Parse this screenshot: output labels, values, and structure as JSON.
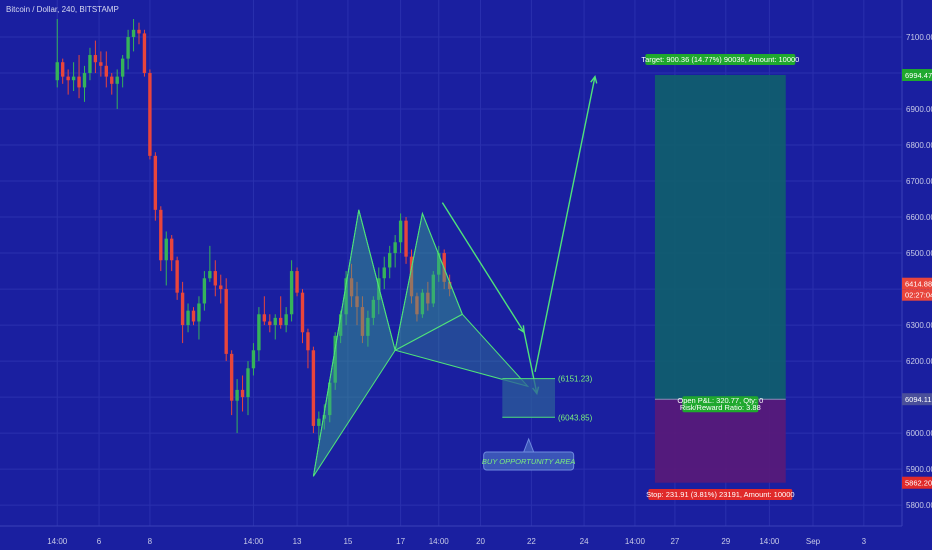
{
  "header": {
    "title": "Bitcoin / Dollar, 240, BITSTAMP"
  },
  "colors": {
    "background": "#1a1fa0",
    "grid": "#2a30ae",
    "up": "#35b35a",
    "down": "#e8453c",
    "pattern_fill": "#3aa88a",
    "pattern_line": "#4fe27a",
    "target_zone": "#0f5f6b",
    "stop_zone": "#5a1a78",
    "axis_text": "#c9cbe8"
  },
  "chart_data": {
    "type": "candlestick",
    "title": "Bitcoin / Dollar, 240, BITSTAMP",
    "y_ticks": [
      5800,
      5900,
      6000,
      6100,
      6200,
      6300,
      6400,
      6500,
      6600,
      6700,
      6800,
      6900,
      7000,
      7100
    ],
    "ylim": [
      5742,
      7175
    ],
    "x_ticks": [
      {
        "label": "14:00",
        "x": 0
      },
      {
        "label": "6",
        "x": 2.3
      },
      {
        "label": "8",
        "x": 5.1
      },
      {
        "label": "14:00",
        "x": 10.8
      },
      {
        "label": "13",
        "x": 13.2
      },
      {
        "label": "15",
        "x": 16.0
      },
      {
        "label": "17",
        "x": 18.9
      },
      {
        "label": "14:00",
        "x": 21.0
      },
      {
        "label": "20",
        "x": 23.3
      },
      {
        "label": "22",
        "x": 26.1
      },
      {
        "label": "24",
        "x": 29.0
      },
      {
        "label": "14:00",
        "x": 31.8
      },
      {
        "label": "27",
        "x": 34.0
      },
      {
        "label": "29",
        "x": 36.8
      },
      {
        "label": "14:00",
        "x": 39.2
      },
      {
        "label": "Sep",
        "x": 41.6
      },
      {
        "label": "3",
        "x": 44.4
      }
    ],
    "xlim": [
      -1.5,
      46.5
    ],
    "candles": [
      [
        0,
        6980,
        7150,
        6960,
        7030
      ],
      [
        0.3,
        7030,
        7040,
        6970,
        6990
      ],
      [
        0.6,
        6990,
        7010,
        6940,
        6980
      ],
      [
        0.9,
        6980,
        7030,
        6950,
        6990
      ],
      [
        1.2,
        6990,
        7050,
        6930,
        6960
      ],
      [
        1.5,
        6960,
        7020,
        6920,
        7000
      ],
      [
        1.8,
        7000,
        7070,
        6980,
        7050
      ],
      [
        2.1,
        7050,
        7090,
        7000,
        7030
      ],
      [
        2.4,
        7030,
        7060,
        6990,
        7020
      ],
      [
        2.7,
        7020,
        7060,
        6960,
        6990
      ],
      [
        3.0,
        6990,
        7000,
        6940,
        6970
      ],
      [
        3.3,
        6970,
        7010,
        6900,
        6990
      ],
      [
        3.6,
        6990,
        7050,
        6960,
        7040
      ],
      [
        3.9,
        7040,
        7120,
        7010,
        7100
      ],
      [
        4.2,
        7100,
        7150,
        7060,
        7120
      ],
      [
        4.5,
        7120,
        7140,
        7080,
        7110
      ],
      [
        4.8,
        7110,
        7120,
        6990,
        7000
      ],
      [
        5.1,
        7000,
        7010,
        6760,
        6770
      ],
      [
        5.4,
        6770,
        6780,
        6590,
        6620
      ],
      [
        5.7,
        6620,
        6630,
        6450,
        6480
      ],
      [
        6.0,
        6480,
        6560,
        6410,
        6540
      ],
      [
        6.3,
        6540,
        6550,
        6450,
        6480
      ],
      [
        6.6,
        6480,
        6490,
        6370,
        6390
      ],
      [
        6.9,
        6390,
        6420,
        6250,
        6300
      ],
      [
        7.2,
        6300,
        6360,
        6280,
        6340
      ],
      [
        7.5,
        6340,
        6350,
        6300,
        6310
      ],
      [
        7.8,
        6310,
        6380,
        6260,
        6360
      ],
      [
        8.1,
        6360,
        6450,
        6340,
        6430
      ],
      [
        8.4,
        6430,
        6520,
        6420,
        6450
      ],
      [
        8.7,
        6450,
        6480,
        6380,
        6410
      ],
      [
        9.0,
        6410,
        6440,
        6360,
        6400
      ],
      [
        9.3,
        6400,
        6430,
        6200,
        6220
      ],
      [
        9.6,
        6220,
        6230,
        6050,
        6090
      ],
      [
        9.9,
        6090,
        6150,
        6000,
        6120
      ],
      [
        10.2,
        6120,
        6160,
        6060,
        6100
      ],
      [
        10.5,
        6100,
        6200,
        6050,
        6180
      ],
      [
        10.8,
        6180,
        6250,
        6160,
        6230
      ],
      [
        11.1,
        6230,
        6350,
        6200,
        6330
      ],
      [
        11.4,
        6330,
        6380,
        6300,
        6310
      ],
      [
        11.7,
        6310,
        6330,
        6280,
        6300
      ],
      [
        12.0,
        6300,
        6330,
        6260,
        6320
      ],
      [
        12.3,
        6320,
        6380,
        6290,
        6300
      ],
      [
        12.6,
        6300,
        6350,
        6280,
        6330
      ],
      [
        12.9,
        6330,
        6480,
        6310,
        6450
      ],
      [
        13.2,
        6450,
        6460,
        6380,
        6390
      ],
      [
        13.5,
        6390,
        6400,
        6250,
        6280
      ],
      [
        13.8,
        6280,
        6290,
        6180,
        6230
      ],
      [
        14.1,
        6230,
        6240,
        6000,
        6020
      ],
      [
        14.4,
        6020,
        6060,
        5980,
        6040
      ],
      [
        14.7,
        6040,
        6080,
        6010,
        6050
      ],
      [
        15.0,
        6050,
        6150,
        6030,
        6140
      ],
      [
        15.3,
        6140,
        6280,
        6120,
        6270
      ],
      [
        15.6,
        6270,
        6340,
        6250,
        6330
      ],
      [
        15.9,
        6330,
        6450,
        6300,
        6430
      ],
      [
        16.2,
        6430,
        6470,
        6350,
        6380
      ],
      [
        16.5,
        6380,
        6420,
        6300,
        6350
      ],
      [
        16.8,
        6350,
        6380,
        6250,
        6270
      ],
      [
        17.1,
        6270,
        6340,
        6240,
        6320
      ],
      [
        17.4,
        6320,
        6380,
        6300,
        6370
      ],
      [
        17.7,
        6370,
        6460,
        6330,
        6430
      ],
      [
        18.0,
        6430,
        6490,
        6400,
        6460
      ],
      [
        18.3,
        6460,
        6520,
        6430,
        6500
      ],
      [
        18.6,
        6500,
        6550,
        6460,
        6530
      ],
      [
        18.9,
        6530,
        6610,
        6500,
        6590
      ],
      [
        19.2,
        6590,
        6600,
        6470,
        6490
      ],
      [
        19.5,
        6490,
        6510,
        6360,
        6380
      ],
      [
        19.8,
        6380,
        6390,
        6310,
        6330
      ],
      [
        20.1,
        6330,
        6400,
        6320,
        6390
      ],
      [
        20.4,
        6390,
        6420,
        6340,
        6360
      ],
      [
        20.7,
        6360,
        6450,
        6350,
        6440
      ],
      [
        21.0,
        6440,
        6520,
        6420,
        6500
      ],
      [
        21.3,
        6500,
        6510,
        6400,
        6420
      ],
      [
        21.6,
        6420,
        6440,
        6380,
        6400
      ]
    ],
    "pattern": {
      "points": [
        [
          14.1,
          5880
        ],
        [
          16.6,
          6620
        ],
        [
          18.6,
          6230
        ],
        [
          20.1,
          6610
        ],
        [
          22.3,
          6330
        ]
      ],
      "projection_end": [
        25.9,
        6130
      ]
    },
    "arrows": [
      {
        "from": [
          21.2,
          6640
        ],
        "to": [
          25.7,
          6280
        ]
      },
      {
        "from": [
          25.7,
          6280
        ],
        "to": [
          26.4,
          6110
        ]
      },
      {
        "from": [
          26.3,
          6170
        ],
        "to": [
          29.6,
          6990
        ]
      }
    ],
    "buy_zone": {
      "top": 6151.23,
      "bottom": 6043.85,
      "x1": 24.5,
      "x2": 27.4
    },
    "position": {
      "x1": 32.9,
      "x2": 40.1,
      "target": 6994.47,
      "entry": 6094.11,
      "stop": 5862.2
    },
    "current_price": 6414.88
  },
  "annotations": {
    "buy_area_label": "BUY OPPORTUNITY AREA",
    "upper_level": "(6151.23)",
    "lower_level": "(6043.85)",
    "target_text": "Target: 900.36 (14.77%) 90036, Amount: 10000",
    "open_pl_line1": "Open P&L: 320.77, Qty: 0",
    "open_pl_line2": "Risk/Reward Ratio: 3.88",
    "stop_text": "Stop: 231.91 (3.81%) 23191, Amount: 10000"
  },
  "price_tags": {
    "target": "6994.47",
    "current": "6414.88",
    "countdown": "02:27:04",
    "entry": "6094.11",
    "stop": "5862.20"
  }
}
